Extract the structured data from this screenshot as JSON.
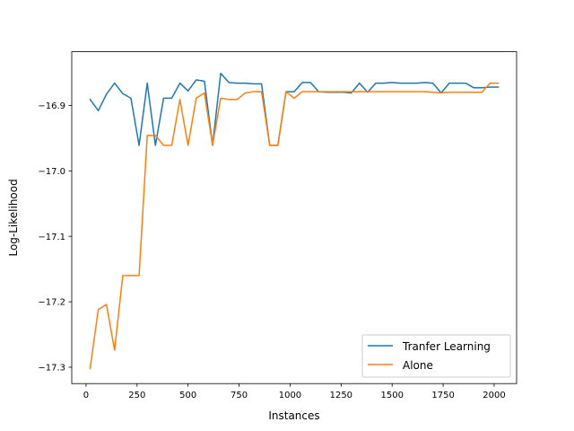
{
  "chart_data": {
    "type": "line",
    "title": "",
    "xlabel": "Instances",
    "ylabel": "Log-Likelihood",
    "xlim": [
      -70,
      2110
    ],
    "ylim": [
      -17.325,
      -16.818
    ],
    "xticks": [
      0,
      250,
      500,
      750,
      1000,
      1250,
      1500,
      1750,
      2000
    ],
    "yticks": [
      -17.3,
      -17.2,
      -17.1,
      -17.0,
      -16.9
    ],
    "ytick_labels": [
      "−17.3",
      "−17.2",
      "−17.1",
      "−17.0",
      "−16.9"
    ],
    "grid": false,
    "legend_position": "lower-right",
    "series": [
      {
        "name": "Tranfer Learning",
        "color": "#1f77b4",
        "x": [
          20,
          60,
          100,
          140,
          180,
          220,
          260,
          300,
          340,
          380,
          420,
          460,
          500,
          540,
          580,
          620,
          660,
          700,
          740,
          780,
          820,
          860,
          900,
          940,
          980,
          1020,
          1060,
          1100,
          1140,
          1180,
          1220,
          1260,
          1300,
          1340,
          1380,
          1420,
          1460,
          1500,
          1540,
          1580,
          1620,
          1660,
          1700,
          1740,
          1780,
          1820,
          1860,
          1900,
          1940,
          1980,
          2020
        ],
        "y": [
          -16.891,
          -16.908,
          -16.883,
          -16.866,
          -16.882,
          -16.889,
          -16.961,
          -16.866,
          -16.961,
          -16.889,
          -16.889,
          -16.866,
          -16.878,
          -16.861,
          -16.863,
          -16.961,
          -16.851,
          -16.865,
          -16.866,
          -16.866,
          -16.867,
          -16.867,
          -16.961,
          -16.961,
          -16.879,
          -16.879,
          -16.865,
          -16.865,
          -16.879,
          -16.88,
          -16.88,
          -16.88,
          -16.881,
          -16.866,
          -16.88,
          -16.866,
          -16.866,
          -16.865,
          -16.866,
          -16.866,
          -16.866,
          -16.865,
          -16.866,
          -16.881,
          -16.866,
          -16.866,
          -16.866,
          -16.873,
          -16.873,
          -16.872,
          -16.872
        ]
      },
      {
        "name": "Alone",
        "color": "#ff7f0e",
        "x": [
          20,
          60,
          100,
          140,
          180,
          220,
          260,
          300,
          340,
          380,
          420,
          460,
          500,
          540,
          580,
          620,
          660,
          700,
          740,
          780,
          820,
          860,
          900,
          940,
          980,
          1020,
          1060,
          1100,
          1140,
          1180,
          1220,
          1260,
          1300,
          1340,
          1380,
          1420,
          1460,
          1500,
          1540,
          1580,
          1620,
          1660,
          1700,
          1740,
          1780,
          1820,
          1860,
          1900,
          1940,
          1980,
          2020
        ],
        "y": [
          -17.302,
          -17.212,
          -17.204,
          -17.274,
          -17.16,
          -17.16,
          -17.16,
          -16.946,
          -16.946,
          -16.961,
          -16.961,
          -16.891,
          -16.961,
          -16.889,
          -16.881,
          -16.961,
          -16.889,
          -16.891,
          -16.891,
          -16.881,
          -16.879,
          -16.879,
          -16.961,
          -16.961,
          -16.879,
          -16.889,
          -16.879,
          -16.879,
          -16.879,
          -16.879,
          -16.879,
          -16.879,
          -16.879,
          -16.879,
          -16.879,
          -16.879,
          -16.879,
          -16.879,
          -16.879,
          -16.879,
          -16.879,
          -16.879,
          -16.88,
          -16.881,
          -16.88,
          -16.88,
          -16.88,
          -16.88,
          -16.88,
          -16.866,
          -16.866
        ]
      }
    ]
  }
}
